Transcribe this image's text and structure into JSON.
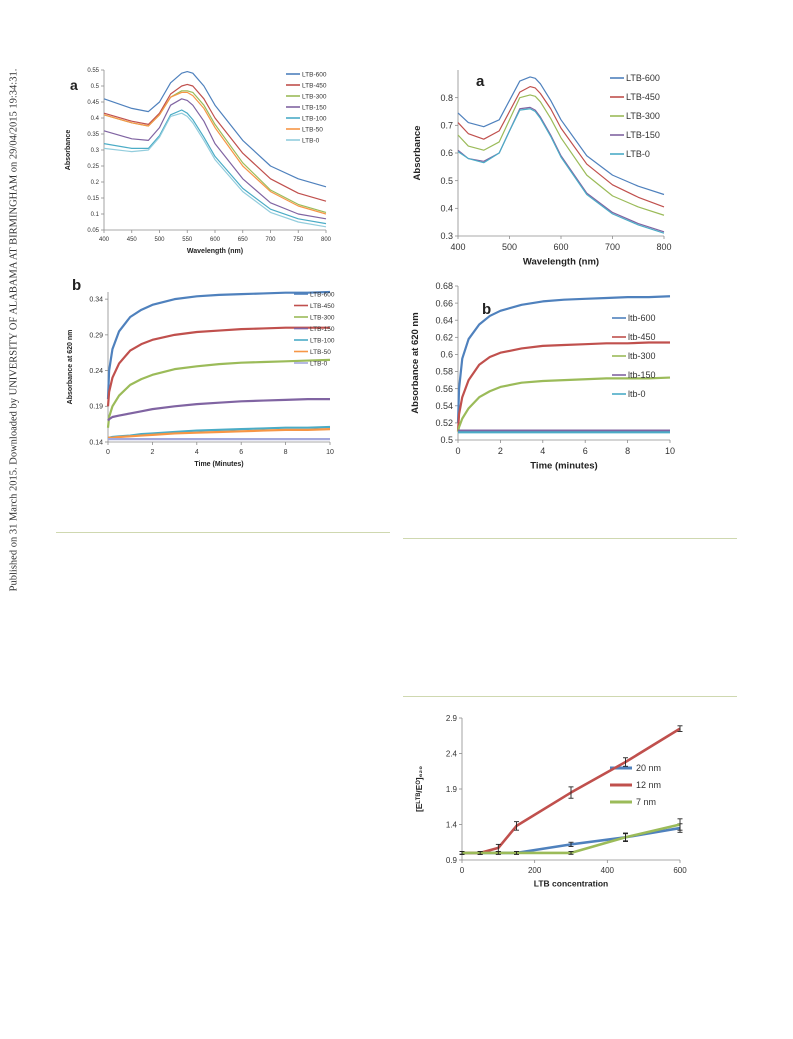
{
  "sidebar": {
    "text": "Published on 31 March 2015. Downloaded by UNIVERSITY OF ALABAMA AT BIRMINGHAM on 29/04/2015 19:34:31."
  },
  "chart_data": [
    {
      "id": "c1",
      "type": "line",
      "panel_label": "a",
      "xlabel": "Wavelength (nm)",
      "ylabel": "Absorbance",
      "xlim": [
        400,
        800
      ],
      "ylim": [
        0.05,
        0.55
      ],
      "xticks": [
        400,
        450,
        500,
        550,
        600,
        650,
        700,
        750,
        800
      ],
      "yticks": [
        0.05,
        0.1,
        0.15,
        0.2,
        0.25,
        0.3,
        0.35,
        0.4,
        0.45,
        0.5,
        0.55
      ],
      "ytick_labels": [
        "0.05",
        "0.1",
        "0.15",
        "0.2",
        "0.25",
        "0.3",
        "0.35",
        "0.4",
        "0.45",
        "0.5",
        "0.55"
      ],
      "legend": "right",
      "x": [
        400,
        450,
        480,
        500,
        520,
        540,
        550,
        560,
        580,
        600,
        650,
        700,
        750,
        800
      ],
      "series": [
        {
          "name": "LTB-600",
          "color": "#4f81bd",
          "values": [
            0.46,
            0.43,
            0.42,
            0.45,
            0.51,
            0.54,
            0.545,
            0.54,
            0.5,
            0.44,
            0.33,
            0.25,
            0.21,
            0.185
          ]
        },
        {
          "name": "LTB-450",
          "color": "#c0504d",
          "values": [
            0.415,
            0.39,
            0.38,
            0.415,
            0.475,
            0.5,
            0.505,
            0.5,
            0.46,
            0.4,
            0.29,
            0.21,
            0.165,
            0.14
          ]
        },
        {
          "name": "LTB-300",
          "color": "#9bbb59",
          "values": [
            0.41,
            0.385,
            0.375,
            0.41,
            0.465,
            0.485,
            0.485,
            0.48,
            0.44,
            0.38,
            0.26,
            0.175,
            0.13,
            0.105
          ]
        },
        {
          "name": "LTB-150",
          "color": "#8064a2",
          "values": [
            0.36,
            0.335,
            0.33,
            0.37,
            0.44,
            0.46,
            0.455,
            0.44,
            0.39,
            0.32,
            0.21,
            0.135,
            0.1,
            0.085
          ]
        },
        {
          "name": "LTB-100",
          "color": "#4bacc6",
          "values": [
            0.32,
            0.305,
            0.305,
            0.345,
            0.41,
            0.425,
            0.415,
            0.395,
            0.34,
            0.28,
            0.18,
            0.115,
            0.085,
            0.07
          ]
        },
        {
          "name": "LTB-50",
          "color": "#f79646",
          "values": [
            0.41,
            0.385,
            0.375,
            0.41,
            0.465,
            0.48,
            0.48,
            0.47,
            0.43,
            0.37,
            0.25,
            0.17,
            0.125,
            0.1
          ]
        },
        {
          "name": "LTB-0",
          "color": "#93cddd",
          "values": [
            0.305,
            0.295,
            0.3,
            0.34,
            0.405,
            0.415,
            0.405,
            0.385,
            0.33,
            0.27,
            0.17,
            0.105,
            0.075,
            0.06
          ]
        }
      ]
    },
    {
      "id": "c2",
      "type": "line",
      "panel_label": "a",
      "xlabel": "Wavelength (nm)",
      "ylabel": "Absorbance",
      "xlim": [
        400,
        800
      ],
      "ylim": [
        0.3,
        0.9
      ],
      "xticks": [
        400,
        500,
        600,
        700,
        800
      ],
      "yticks": [
        0.3,
        0.4,
        0.5,
        0.6,
        0.7,
        0.8
      ],
      "ytick_labels": [
        "0.3",
        "0.4",
        "0.5",
        "0.6",
        "0.7",
        "0.8"
      ],
      "legend": "right",
      "x": [
        400,
        420,
        450,
        480,
        500,
        520,
        540,
        550,
        560,
        580,
        600,
        650,
        700,
        750,
        800
      ],
      "series": [
        {
          "name": "LTB-600",
          "color": "#4f81bd",
          "values": [
            0.745,
            0.71,
            0.695,
            0.72,
            0.79,
            0.86,
            0.875,
            0.87,
            0.85,
            0.79,
            0.72,
            0.59,
            0.52,
            0.48,
            0.45
          ]
        },
        {
          "name": "LTB-450",
          "color": "#c0504d",
          "values": [
            0.71,
            0.67,
            0.65,
            0.68,
            0.75,
            0.82,
            0.84,
            0.835,
            0.815,
            0.76,
            0.69,
            0.56,
            0.485,
            0.44,
            0.405
          ]
        },
        {
          "name": "LTB-300",
          "color": "#9bbb59",
          "values": [
            0.665,
            0.625,
            0.61,
            0.64,
            0.72,
            0.8,
            0.81,
            0.805,
            0.785,
            0.725,
            0.655,
            0.52,
            0.445,
            0.405,
            0.375
          ]
        },
        {
          "name": "LTB-150",
          "color": "#8064a2",
          "values": [
            0.61,
            0.58,
            0.57,
            0.6,
            0.68,
            0.76,
            0.765,
            0.755,
            0.73,
            0.665,
            0.59,
            0.455,
            0.385,
            0.345,
            0.315
          ]
        },
        {
          "name": "LTB-0",
          "color": "#4bacc6",
          "values": [
            0.605,
            0.58,
            0.565,
            0.6,
            0.68,
            0.755,
            0.76,
            0.75,
            0.725,
            0.66,
            0.585,
            0.45,
            0.38,
            0.34,
            0.31
          ]
        }
      ]
    },
    {
      "id": "c3",
      "type": "line",
      "panel_label": "b",
      "xlabel": "Time (Minutes)",
      "ylabel": "Absorbance at 620 nm",
      "xlim": [
        0,
        10
      ],
      "ylim": [
        0.14,
        0.35
      ],
      "xticks": [
        0,
        2,
        4,
        6,
        8,
        10
      ],
      "yticks": [
        0.14,
        0.19,
        0.24,
        0.29,
        0.34
      ],
      "ytick_labels": [
        "0.14",
        "0.19",
        "0.24",
        "0.29",
        "0.34"
      ],
      "legend": "right",
      "x": [
        0,
        0.05,
        0.2,
        0.5,
        1,
        1.5,
        2,
        3,
        4,
        5,
        6,
        7,
        8,
        9,
        10
      ],
      "series": [
        {
          "name": "LTB-600",
          "color": "#4f81bd",
          "values": [
            0.2,
            0.24,
            0.27,
            0.295,
            0.315,
            0.325,
            0.332,
            0.34,
            0.344,
            0.346,
            0.347,
            0.348,
            0.349,
            0.349,
            0.35
          ]
        },
        {
          "name": "LTB-450",
          "color": "#c0504d",
          "values": [
            0.19,
            0.21,
            0.23,
            0.25,
            0.268,
            0.277,
            0.283,
            0.29,
            0.294,
            0.296,
            0.298,
            0.299,
            0.3,
            0.3,
            0.3
          ]
        },
        {
          "name": "LTB-300",
          "color": "#9bbb59",
          "values": [
            0.16,
            0.175,
            0.19,
            0.205,
            0.22,
            0.228,
            0.234,
            0.242,
            0.246,
            0.249,
            0.251,
            0.252,
            0.253,
            0.254,
            0.255
          ]
        },
        {
          "name": "LTB-150",
          "color": "#8064a2",
          "values": [
            0.17,
            0.172,
            0.175,
            0.177,
            0.18,
            0.183,
            0.186,
            0.19,
            0.193,
            0.195,
            0.197,
            0.198,
            0.199,
            0.2,
            0.2
          ]
        },
        {
          "name": "LTB-100",
          "color": "#4bacc6",
          "values": [
            0.145,
            0.146,
            0.147,
            0.148,
            0.149,
            0.151,
            0.152,
            0.154,
            0.156,
            0.157,
            0.158,
            0.159,
            0.16,
            0.16,
            0.161
          ]
        },
        {
          "name": "LTB-50",
          "color": "#f79646",
          "values": [
            0.146,
            0.146,
            0.146,
            0.147,
            0.148,
            0.149,
            0.15,
            0.152,
            0.153,
            0.154,
            0.155,
            0.156,
            0.157,
            0.157,
            0.158
          ]
        },
        {
          "name": "LTB-0",
          "color": "#a4a8dc",
          "values": [
            0.144,
            0.144,
            0.144,
            0.144,
            0.144,
            0.144,
            0.144,
            0.144,
            0.144,
            0.144,
            0.144,
            0.144,
            0.144,
            0.144,
            0.144
          ]
        }
      ]
    },
    {
      "id": "c4",
      "type": "line",
      "panel_label": "b",
      "xlabel": "Time (minutes)",
      "ylabel": "Absorbance at 620 nm",
      "xlim": [
        0,
        10
      ],
      "ylim": [
        0.5,
        0.68
      ],
      "xticks": [
        0,
        2,
        4,
        6,
        8,
        10
      ],
      "yticks": [
        0.5,
        0.52,
        0.54,
        0.56,
        0.58,
        0.6,
        0.62,
        0.64,
        0.66,
        0.68
      ],
      "ytick_labels": [
        "0.5",
        "0.52",
        "0.54",
        "0.56",
        "0.58",
        "0.6",
        "0.62",
        "0.64",
        "0.66",
        "0.68"
      ],
      "legend": "right",
      "x": [
        0,
        0.05,
        0.2,
        0.5,
        1,
        1.5,
        2,
        3,
        4,
        5,
        6,
        7,
        8,
        9,
        10
      ],
      "series": [
        {
          "name": "ltb-600",
          "color": "#4f81bd",
          "values": [
            0.52,
            0.56,
            0.595,
            0.618,
            0.635,
            0.645,
            0.651,
            0.658,
            0.662,
            0.664,
            0.665,
            0.666,
            0.667,
            0.667,
            0.668
          ]
        },
        {
          "name": "ltb-450",
          "color": "#c0504d",
          "values": [
            0.51,
            0.53,
            0.55,
            0.57,
            0.588,
            0.597,
            0.602,
            0.607,
            0.61,
            0.611,
            0.612,
            0.613,
            0.613,
            0.614,
            0.614
          ]
        },
        {
          "name": "ltb-300",
          "color": "#9bbb59",
          "values": [
            0.51,
            0.515,
            0.525,
            0.537,
            0.55,
            0.557,
            0.562,
            0.567,
            0.569,
            0.57,
            0.571,
            0.572,
            0.572,
            0.572,
            0.573
          ]
        },
        {
          "name": "ltb-150",
          "color": "#8064a2",
          "values": [
            0.511,
            0.511,
            0.511,
            0.511,
            0.511,
            0.511,
            0.511,
            0.511,
            0.511,
            0.511,
            0.511,
            0.511,
            0.511,
            0.511,
            0.511
          ]
        },
        {
          "name": "ltb-0",
          "color": "#4bacc6",
          "values": [
            0.509,
            0.509,
            0.509,
            0.509,
            0.509,
            0.509,
            0.509,
            0.509,
            0.509,
            0.509,
            0.509,
            0.509,
            0.509,
            0.509,
            0.509
          ]
        }
      ]
    },
    {
      "id": "c5",
      "type": "line",
      "panel_label": "",
      "xlabel": "LTB concentration",
      "ylabel": "[Eᴸᵀᴮ/Eᴼ]₆₂₀",
      "xlim": [
        0,
        600
      ],
      "ylim": [
        0.9,
        2.9
      ],
      "xticks": [
        0,
        200,
        400,
        600
      ],
      "yticks": [
        0.9,
        1.4,
        1.9,
        2.4,
        2.9
      ],
      "ytick_labels": [
        "0.9",
        "1.4",
        "1.9",
        "2.4",
        "2.9"
      ],
      "legend": "right",
      "x": [
        0,
        50,
        100,
        150,
        300,
        450,
        600
      ],
      "series": [
        {
          "name": "20 nm",
          "color": "#4f81bd",
          "values": [
            1.0,
            1.0,
            1.0,
            1.0,
            1.12,
            1.22,
            1.35
          ],
          "errors": [
            0.02,
            0.02,
            0.02,
            0.02,
            0.03,
            0.05,
            0.06
          ]
        },
        {
          "name": "12 nm",
          "color": "#c0504d",
          "values": [
            1.0,
            1.0,
            1.07,
            1.38,
            1.85,
            2.28,
            2.75
          ],
          "errors": [
            0.02,
            0.02,
            0.05,
            0.06,
            0.08,
            0.06,
            0.04
          ]
        },
        {
          "name": "7 nm",
          "color": "#9bbb59",
          "values": [
            1.0,
            1.0,
            1.0,
            1.0,
            1.0,
            1.22,
            1.4
          ],
          "errors": [
            0.02,
            0.02,
            0.02,
            0.02,
            0.02,
            0.06,
            0.08
          ]
        }
      ]
    }
  ]
}
